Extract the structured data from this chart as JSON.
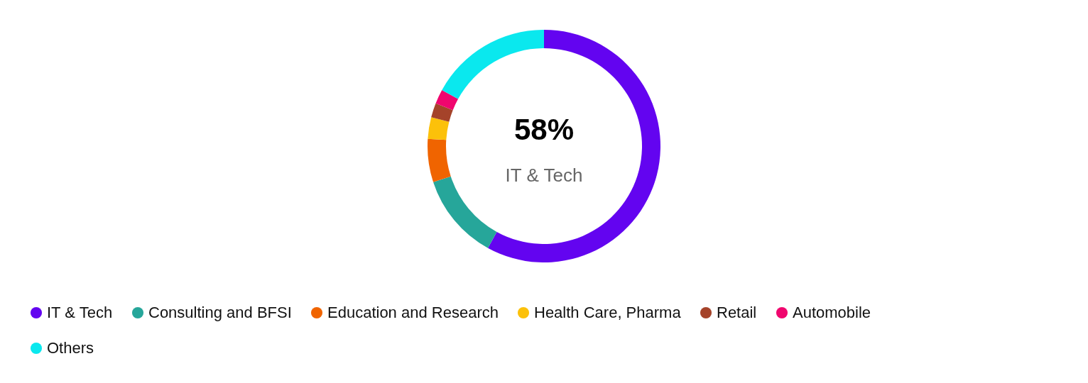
{
  "chart_data": {
    "type": "donut",
    "categories": [
      "IT & Tech",
      "Consulting and BFSI",
      "Education and Research",
      "Health Care, Pharma",
      "Retail",
      "Automobile",
      "Others"
    ],
    "values": [
      58,
      12,
      6,
      3,
      2,
      2,
      17
    ],
    "colors": [
      "#6304f0",
      "#26a69a",
      "#f06400",
      "#fcc10a",
      "#a5432a",
      "#f0066e",
      "#0ae8ee"
    ],
    "annotations": [
      "58%",
      "IT & Tech"
    ],
    "legend": "bottom"
  }
}
